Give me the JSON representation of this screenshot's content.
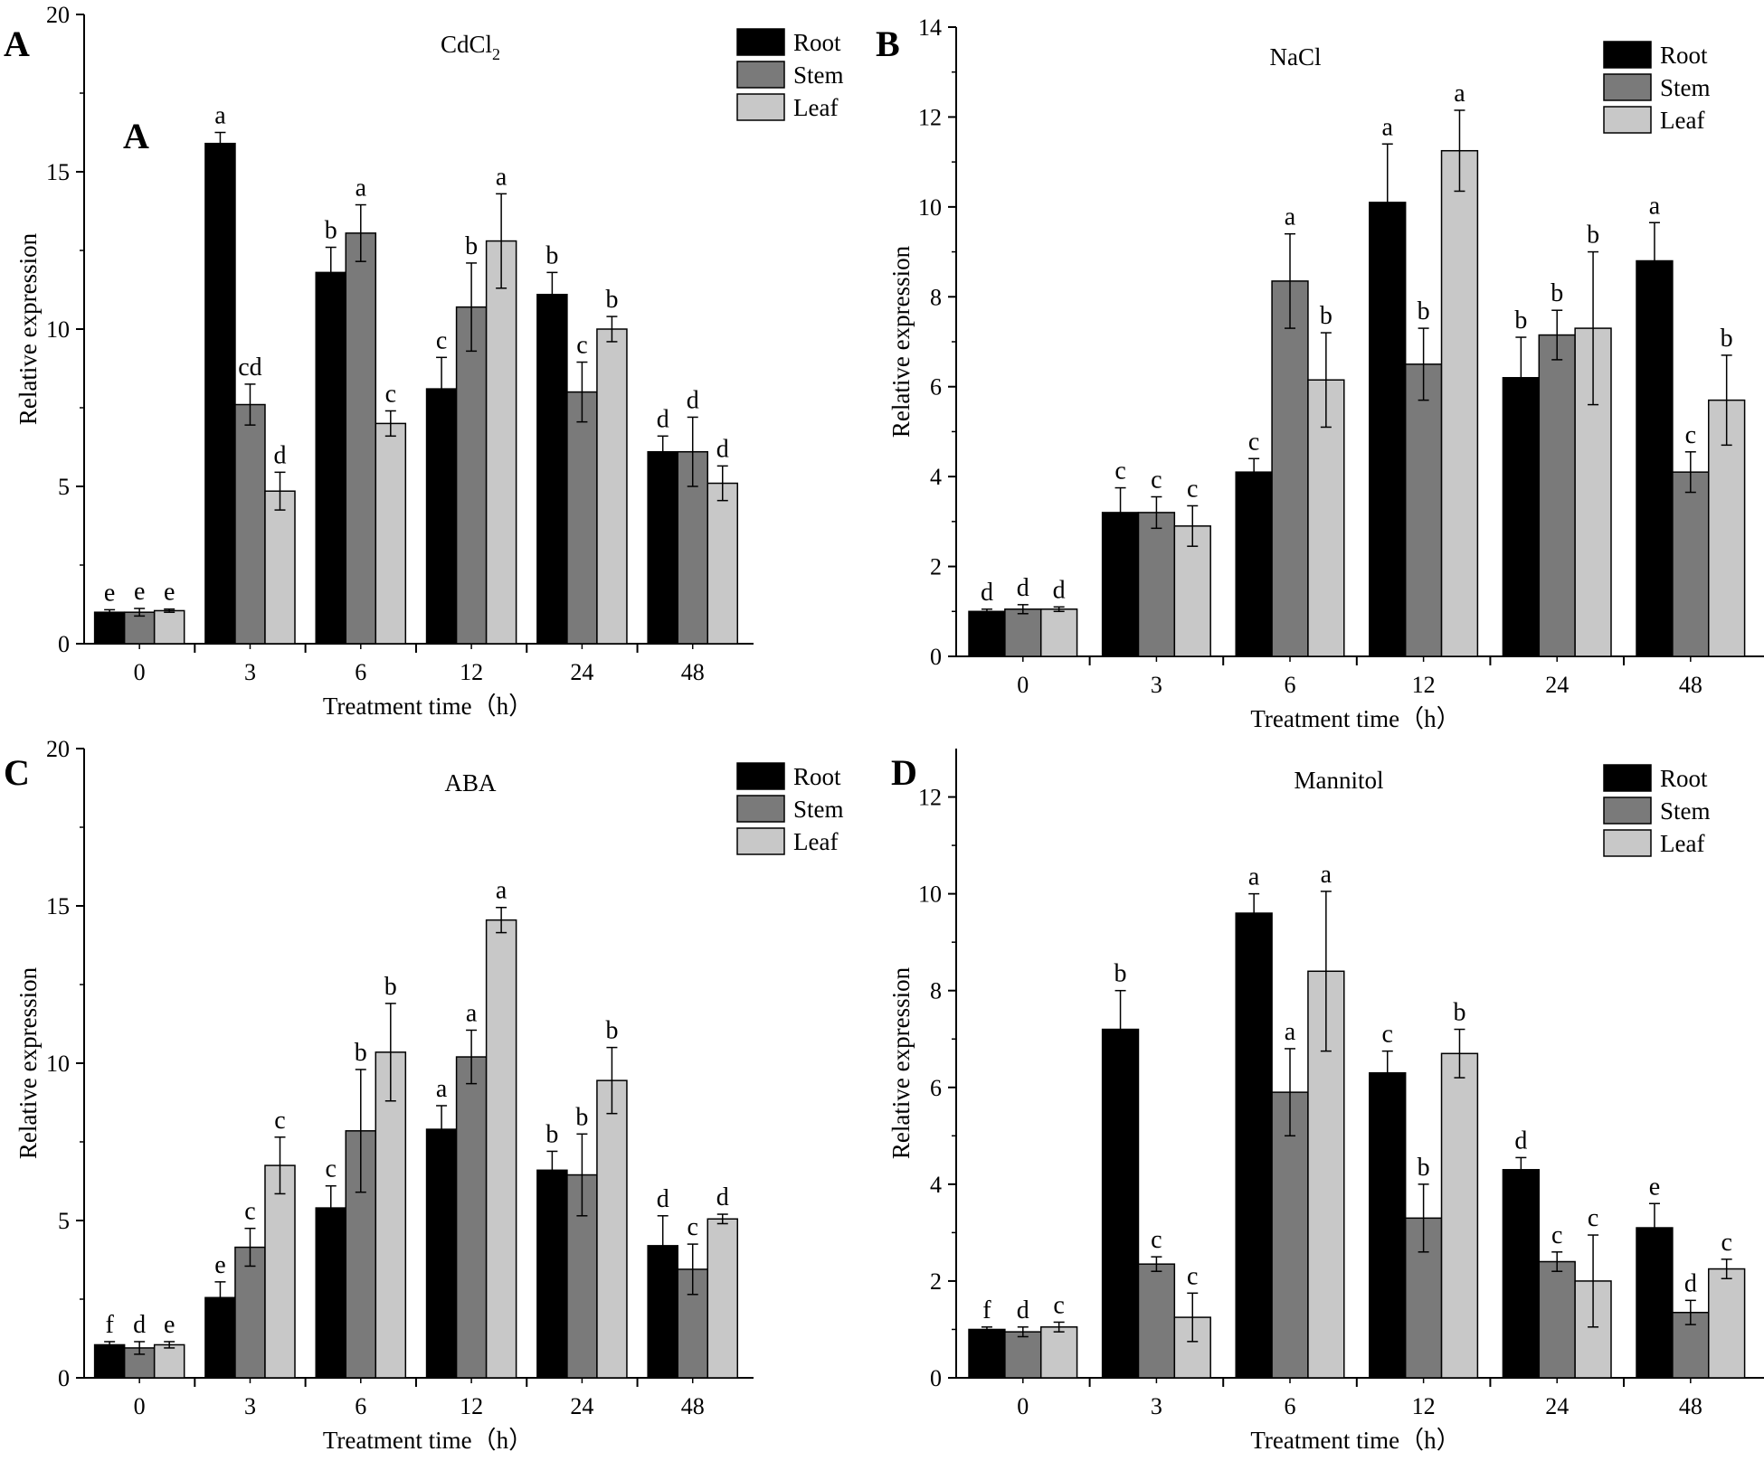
{
  "figure": {
    "series_names": [
      "Root",
      "Stem",
      "Leaf"
    ],
    "series_colors": {
      "Root": "#000000",
      "Stem": "#7a7a7a",
      "Leaf": "#c8c8c8"
    }
  },
  "chart_data": [
    {
      "panel": "A",
      "inner_label": "A",
      "type": "bar",
      "title": "CdCl2",
      "title_main": "CdCl",
      "title_sub": "2",
      "xlabel": "Treatment time（h）",
      "ylabel": "Relative expression",
      "categories": [
        "0",
        "3",
        "6",
        "12",
        "24",
        "48"
      ],
      "ylim": [
        0,
        20
      ],
      "yticks": [
        0,
        5,
        10,
        15,
        20
      ],
      "legend": "top-right",
      "series": [
        {
          "name": "Root",
          "values": [
            1.0,
            15.9,
            11.8,
            8.1,
            11.1,
            6.1
          ],
          "errors": [
            0.08,
            0.35,
            0.8,
            1.0,
            0.7,
            0.5
          ],
          "letters": [
            "e",
            "a",
            "b",
            "c",
            "b",
            "d"
          ]
        },
        {
          "name": "Stem",
          "values": [
            1.0,
            7.6,
            13.05,
            10.7,
            8.0,
            6.1
          ],
          "errors": [
            0.12,
            0.65,
            0.9,
            1.4,
            0.95,
            1.1
          ],
          "letters": [
            "e",
            "cd",
            "a",
            "b",
            "c",
            "d"
          ]
        },
        {
          "name": "Leaf",
          "values": [
            1.05,
            4.85,
            7.0,
            12.8,
            10.0,
            5.1
          ],
          "errors": [
            0.05,
            0.6,
            0.4,
            1.5,
            0.4,
            0.55
          ],
          "letters": [
            "e",
            "d",
            "c",
            "a",
            "b",
            "d"
          ]
        }
      ]
    },
    {
      "panel": "B",
      "type": "bar",
      "title": "NaCl",
      "xlabel": "Treatment time（h）",
      "ylabel": "Relative expression",
      "categories": [
        "0",
        "3",
        "6",
        "12",
        "24",
        "48"
      ],
      "ylim": [
        0,
        14
      ],
      "yticks": [
        0,
        2,
        4,
        6,
        8,
        10,
        12,
        14
      ],
      "legend": "top-right",
      "series": [
        {
          "name": "Root",
          "values": [
            1.0,
            3.2,
            4.1,
            10.1,
            6.2,
            8.8
          ],
          "errors": [
            0.05,
            0.55,
            0.3,
            1.3,
            0.9,
            0.85
          ],
          "letters": [
            "d",
            "c",
            "c",
            "a",
            "b",
            "a"
          ]
        },
        {
          "name": "Stem",
          "values": [
            1.05,
            3.2,
            8.35,
            6.5,
            7.15,
            4.1
          ],
          "errors": [
            0.1,
            0.35,
            1.05,
            0.8,
            0.55,
            0.45
          ],
          "letters": [
            "d",
            "c",
            "a",
            "b",
            "b",
            "c"
          ]
        },
        {
          "name": "Leaf",
          "values": [
            1.05,
            2.9,
            6.15,
            11.25,
            7.3,
            5.7
          ],
          "errors": [
            0.05,
            0.45,
            1.05,
            0.9,
            1.7,
            1.0
          ],
          "letters": [
            "d",
            "c",
            "b",
            "a",
            "b",
            "b"
          ]
        }
      ]
    },
    {
      "panel": "C",
      "type": "bar",
      "title": "ABA",
      "xlabel": "Treatment time（h）",
      "ylabel": "Relative expression",
      "categories": [
        "0",
        "3",
        "6",
        "12",
        "24",
        "48"
      ],
      "ylim": [
        0,
        20
      ],
      "yticks": [
        0,
        5,
        10,
        15,
        20
      ],
      "legend": "top-right",
      "series": [
        {
          "name": "Root",
          "values": [
            1.05,
            2.55,
            5.4,
            7.9,
            6.6,
            4.2
          ],
          "errors": [
            0.1,
            0.5,
            0.7,
            0.75,
            0.6,
            0.95
          ],
          "letters": [
            "f",
            "e",
            "c",
            "a",
            "b",
            "d"
          ]
        },
        {
          "name": "Stem",
          "values": [
            0.95,
            4.15,
            7.85,
            10.2,
            6.45,
            3.45
          ],
          "errors": [
            0.2,
            0.6,
            1.95,
            0.85,
            1.3,
            0.8
          ],
          "letters": [
            "d",
            "c",
            "b",
            "a",
            "b",
            "c"
          ]
        },
        {
          "name": "Leaf",
          "values": [
            1.05,
            6.75,
            10.35,
            14.55,
            9.45,
            5.05
          ],
          "errors": [
            0.1,
            0.9,
            1.55,
            0.4,
            1.05,
            0.15
          ],
          "letters": [
            "e",
            "c",
            "b",
            "a",
            "b",
            "d"
          ]
        }
      ]
    },
    {
      "panel": "D",
      "type": "bar",
      "title": "Mannitol",
      "xlabel": "Treatment time（h）",
      "ylabel": "Relative expression",
      "categories": [
        "0",
        "3",
        "6",
        "12",
        "24",
        "48"
      ],
      "ylim": [
        0,
        13
      ],
      "yticks": [
        0,
        2,
        4,
        6,
        8,
        10,
        12
      ],
      "legend": "top-right",
      "series": [
        {
          "name": "Root",
          "values": [
            1.0,
            7.2,
            9.6,
            6.3,
            4.3,
            3.1
          ],
          "errors": [
            0.05,
            0.8,
            0.4,
            0.45,
            0.25,
            0.5
          ],
          "letters": [
            "f",
            "b",
            "a",
            "c",
            "d",
            "e"
          ]
        },
        {
          "name": "Stem",
          "values": [
            0.95,
            2.35,
            5.9,
            3.3,
            2.4,
            1.35
          ],
          "errors": [
            0.1,
            0.15,
            0.9,
            0.7,
            0.2,
            0.25
          ],
          "letters": [
            "d",
            "c",
            "a",
            "b",
            "c",
            "d"
          ]
        },
        {
          "name": "Leaf",
          "values": [
            1.05,
            1.25,
            8.4,
            6.7,
            2.0,
            2.25
          ],
          "errors": [
            0.1,
            0.5,
            1.65,
            0.5,
            0.95,
            0.2
          ],
          "letters": [
            "c",
            "c",
            "a",
            "b",
            "c",
            "c"
          ]
        }
      ]
    }
  ]
}
